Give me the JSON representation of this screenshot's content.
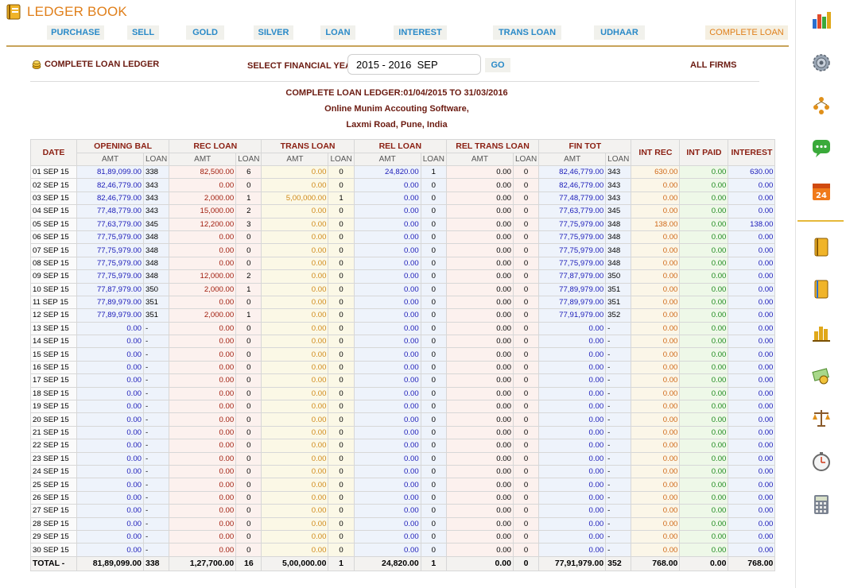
{
  "app": {
    "title": "LEDGER BOOK"
  },
  "nav": [
    {
      "label": "PURCHASE"
    },
    {
      "label": "SELL"
    },
    {
      "label": "GOLD"
    },
    {
      "label": "SILVER"
    },
    {
      "label": "LOAN"
    },
    {
      "label": "INTEREST"
    },
    {
      "label": "TRANS LOAN"
    },
    {
      "label": "UDHAAR"
    },
    {
      "label": "COMPLETE LOAN"
    }
  ],
  "toolbar": {
    "ledger_label": "COMPLETE LOAN LEDGER",
    "fy_label": "SELECT FINANCIAL YEAR:",
    "fy_value": "2015 - 2016  SEP",
    "go_label": "GO",
    "firms_label": "ALL FIRMS"
  },
  "report": {
    "title": "COMPLETE LOAN LEDGER:01/04/2015 TO 31/03/2016",
    "company": "Online Munim Accouting Software,",
    "address": "Laxmi Road, Pune, India"
  },
  "table": {
    "headers": {
      "date": "DATE",
      "opening": "OPENING BAL",
      "rec": "REC LOAN",
      "trans": "TRANS LOAN",
      "rel": "REL LOAN",
      "reltrans": "REL TRANS LOAN",
      "fin": "FIN TOT",
      "intrec": "INT REC",
      "intpaid": "INT PAID",
      "interest": "INTEREST",
      "amt": "AMT",
      "loan": "LOAN"
    },
    "rows": [
      [
        "01 SEP 15",
        "81,89,099.00",
        "338",
        "82,500.00",
        "6",
        "0.00",
        "0",
        "24,820.00",
        "1",
        "0.00",
        "0",
        "82,46,779.00",
        "343",
        "630.00",
        "0.00",
        "630.00"
      ],
      [
        "02 SEP 15",
        "82,46,779.00",
        "343",
        "0.00",
        "0",
        "0.00",
        "0",
        "0.00",
        "0",
        "0.00",
        "0",
        "82,46,779.00",
        "343",
        "0.00",
        "0.00",
        "0.00"
      ],
      [
        "03 SEP 15",
        "82,46,779.00",
        "343",
        "2,000.00",
        "1",
        "5,00,000.00",
        "1",
        "0.00",
        "0",
        "0.00",
        "0",
        "77,48,779.00",
        "343",
        "0.00",
        "0.00",
        "0.00"
      ],
      [
        "04 SEP 15",
        "77,48,779.00",
        "343",
        "15,000.00",
        "2",
        "0.00",
        "0",
        "0.00",
        "0",
        "0.00",
        "0",
        "77,63,779.00",
        "345",
        "0.00",
        "0.00",
        "0.00"
      ],
      [
        "05 SEP 15",
        "77,63,779.00",
        "345",
        "12,200.00",
        "3",
        "0.00",
        "0",
        "0.00",
        "0",
        "0.00",
        "0",
        "77,75,979.00",
        "348",
        "138.00",
        "0.00",
        "138.00"
      ],
      [
        "06 SEP 15",
        "77,75,979.00",
        "348",
        "0.00",
        "0",
        "0.00",
        "0",
        "0.00",
        "0",
        "0.00",
        "0",
        "77,75,979.00",
        "348",
        "0.00",
        "0.00",
        "0.00"
      ],
      [
        "07 SEP 15",
        "77,75,979.00",
        "348",
        "0.00",
        "0",
        "0.00",
        "0",
        "0.00",
        "0",
        "0.00",
        "0",
        "77,75,979.00",
        "348",
        "0.00",
        "0.00",
        "0.00"
      ],
      [
        "08 SEP 15",
        "77,75,979.00",
        "348",
        "0.00",
        "0",
        "0.00",
        "0",
        "0.00",
        "0",
        "0.00",
        "0",
        "77,75,979.00",
        "348",
        "0.00",
        "0.00",
        "0.00"
      ],
      [
        "09 SEP 15",
        "77,75,979.00",
        "348",
        "12,000.00",
        "2",
        "0.00",
        "0",
        "0.00",
        "0",
        "0.00",
        "0",
        "77,87,979.00",
        "350",
        "0.00",
        "0.00",
        "0.00"
      ],
      [
        "10 SEP 15",
        "77,87,979.00",
        "350",
        "2,000.00",
        "1",
        "0.00",
        "0",
        "0.00",
        "0",
        "0.00",
        "0",
        "77,89,979.00",
        "351",
        "0.00",
        "0.00",
        "0.00"
      ],
      [
        "11 SEP 15",
        "77,89,979.00",
        "351",
        "0.00",
        "0",
        "0.00",
        "0",
        "0.00",
        "0",
        "0.00",
        "0",
        "77,89,979.00",
        "351",
        "0.00",
        "0.00",
        "0.00"
      ],
      [
        "12 SEP 15",
        "77,89,979.00",
        "351",
        "2,000.00",
        "1",
        "0.00",
        "0",
        "0.00",
        "0",
        "0.00",
        "0",
        "77,91,979.00",
        "352",
        "0.00",
        "0.00",
        "0.00"
      ],
      [
        "13 SEP 15",
        "0.00",
        "-",
        "0.00",
        "0",
        "0.00",
        "0",
        "0.00",
        "0",
        "0.00",
        "0",
        "0.00",
        "-",
        "0.00",
        "0.00",
        "0.00"
      ],
      [
        "14 SEP 15",
        "0.00",
        "-",
        "0.00",
        "0",
        "0.00",
        "0",
        "0.00",
        "0",
        "0.00",
        "0",
        "0.00",
        "-",
        "0.00",
        "0.00",
        "0.00"
      ],
      [
        "15 SEP 15",
        "0.00",
        "-",
        "0.00",
        "0",
        "0.00",
        "0",
        "0.00",
        "0",
        "0.00",
        "0",
        "0.00",
        "-",
        "0.00",
        "0.00",
        "0.00"
      ],
      [
        "16 SEP 15",
        "0.00",
        "-",
        "0.00",
        "0",
        "0.00",
        "0",
        "0.00",
        "0",
        "0.00",
        "0",
        "0.00",
        "-",
        "0.00",
        "0.00",
        "0.00"
      ],
      [
        "17 SEP 15",
        "0.00",
        "-",
        "0.00",
        "0",
        "0.00",
        "0",
        "0.00",
        "0",
        "0.00",
        "0",
        "0.00",
        "-",
        "0.00",
        "0.00",
        "0.00"
      ],
      [
        "18 SEP 15",
        "0.00",
        "-",
        "0.00",
        "0",
        "0.00",
        "0",
        "0.00",
        "0",
        "0.00",
        "0",
        "0.00",
        "-",
        "0.00",
        "0.00",
        "0.00"
      ],
      [
        "19 SEP 15",
        "0.00",
        "-",
        "0.00",
        "0",
        "0.00",
        "0",
        "0.00",
        "0",
        "0.00",
        "0",
        "0.00",
        "-",
        "0.00",
        "0.00",
        "0.00"
      ],
      [
        "20 SEP 15",
        "0.00",
        "-",
        "0.00",
        "0",
        "0.00",
        "0",
        "0.00",
        "0",
        "0.00",
        "0",
        "0.00",
        "-",
        "0.00",
        "0.00",
        "0.00"
      ],
      [
        "21 SEP 15",
        "0.00",
        "-",
        "0.00",
        "0",
        "0.00",
        "0",
        "0.00",
        "0",
        "0.00",
        "0",
        "0.00",
        "-",
        "0.00",
        "0.00",
        "0.00"
      ],
      [
        "22 SEP 15",
        "0.00",
        "-",
        "0.00",
        "0",
        "0.00",
        "0",
        "0.00",
        "0",
        "0.00",
        "0",
        "0.00",
        "-",
        "0.00",
        "0.00",
        "0.00"
      ],
      [
        "23 SEP 15",
        "0.00",
        "-",
        "0.00",
        "0",
        "0.00",
        "0",
        "0.00",
        "0",
        "0.00",
        "0",
        "0.00",
        "-",
        "0.00",
        "0.00",
        "0.00"
      ],
      [
        "24 SEP 15",
        "0.00",
        "-",
        "0.00",
        "0",
        "0.00",
        "0",
        "0.00",
        "0",
        "0.00",
        "0",
        "0.00",
        "-",
        "0.00",
        "0.00",
        "0.00"
      ],
      [
        "25 SEP 15",
        "0.00",
        "-",
        "0.00",
        "0",
        "0.00",
        "0",
        "0.00",
        "0",
        "0.00",
        "0",
        "0.00",
        "-",
        "0.00",
        "0.00",
        "0.00"
      ],
      [
        "26 SEP 15",
        "0.00",
        "-",
        "0.00",
        "0",
        "0.00",
        "0",
        "0.00",
        "0",
        "0.00",
        "0",
        "0.00",
        "-",
        "0.00",
        "0.00",
        "0.00"
      ],
      [
        "27 SEP 15",
        "0.00",
        "-",
        "0.00",
        "0",
        "0.00",
        "0",
        "0.00",
        "0",
        "0.00",
        "0",
        "0.00",
        "-",
        "0.00",
        "0.00",
        "0.00"
      ],
      [
        "28 SEP 15",
        "0.00",
        "-",
        "0.00",
        "0",
        "0.00",
        "0",
        "0.00",
        "0",
        "0.00",
        "0",
        "0.00",
        "-",
        "0.00",
        "0.00",
        "0.00"
      ],
      [
        "29 SEP 15",
        "0.00",
        "-",
        "0.00",
        "0",
        "0.00",
        "0",
        "0.00",
        "0",
        "0.00",
        "0",
        "0.00",
        "-",
        "0.00",
        "0.00",
        "0.00"
      ],
      [
        "30 SEP 15",
        "0.00",
        "-",
        "0.00",
        "0",
        "0.00",
        "0",
        "0.00",
        "0",
        "0.00",
        "0",
        "0.00",
        "-",
        "0.00",
        "0.00",
        "0.00"
      ]
    ],
    "total": [
      "TOTAL -",
      "81,89,099.00",
      "338",
      "1,27,700.00",
      "16",
      "5,00,000.00",
      "1",
      "24,820.00",
      "1",
      "0.00",
      "0",
      "77,91,979.00",
      "352",
      "768.00",
      "0.00",
      "768.00"
    ]
  },
  "sidebar": [
    "bar-chart-icon",
    "gear-icon",
    "people-hierarchy-icon",
    "chat-bubble-icon",
    "calendar-24-icon",
    "ledger-book-icon",
    "ledger-book-2-icon",
    "chart-columns-icon",
    "cash-icon",
    "balance-scale-icon",
    "stopwatch-icon",
    "calculator-icon"
  ],
  "colors": {
    "accent": "#e07f1a",
    "nav_link": "#2a8ac8",
    "header_text": "#8b1f12",
    "amount_blue": "#1a1ab8",
    "amount_green": "#1e8a1e"
  }
}
